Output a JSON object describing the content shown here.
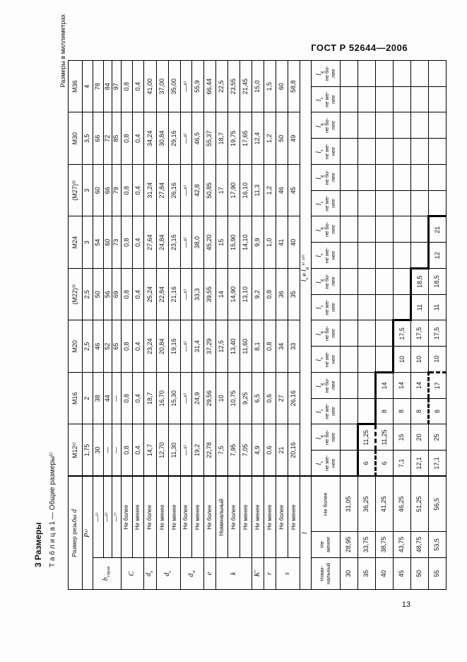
{
  "page": {
    "doc_code": "ГОСТ Р 52644—2006",
    "page_number": "13",
    "section_title": "3  Размеры",
    "table_caption": "Т а б л и ц а  1 — Общие размеры¹⁾",
    "units_note": "Размеры в миллиметрах"
  },
  "main_table": {
    "corner_label": "Размер резьбы",
    "corner_symbol": "d",
    "size_headers": [
      "М12²⁾",
      "М16",
      "М20",
      "(М22)³⁾",
      "М24",
      "(М27)³⁾",
      "М30",
      "М36"
    ],
    "groups": [
      {
        "sym": "P",
        "note": "⁴⁾",
        "span_label": true,
        "rows": [
          {
            "qual": "",
            "values": [
              "1,75",
              "2",
              "2,5",
              "2,5",
              "3",
              "3",
              "3,5",
              "4"
            ]
          }
        ]
      },
      {
        "sym": "b",
        "sub": "справ",
        "rows": [
          {
            "qual": "—⁵⁾",
            "values": [
              "30",
              "38",
              "46",
              "50",
              "54",
              "60",
              "66",
              "78"
            ]
          },
          {
            "qual": "—⁶⁾",
            "values": [
              "—",
              "44",
              "52",
              "56",
              "60",
              "66",
              "72",
              "84"
            ]
          },
          {
            "qual": "—⁷⁾",
            "values": [
              "—",
              "—",
              "65",
              "69",
              "73",
              "79",
              "85",
              "97"
            ]
          }
        ]
      },
      {
        "sym": "С",
        "rows": [
          {
            "qual": "Не более",
            "values": [
              "0,8",
              "0,8",
              "0,8",
              "0,8",
              "0,8",
              "0,8",
              "0,8",
              "0,8"
            ]
          },
          {
            "qual": "Не менее",
            "values": [
              "0,4",
              "0,4",
              "0,4",
              "0,4",
              "0,4",
              "0,4",
              "0,4",
              "0,4"
            ]
          }
        ]
      },
      {
        "sym": "d",
        "sub": "а",
        "rows": [
          {
            "qual": "Не более",
            "values": [
              "14,7",
              "18,7",
              "23,24",
              "25,24",
              "27,64",
              "31,24",
              "34,24",
              "41,00"
            ]
          }
        ]
      },
      {
        "sym": "d",
        "sub": "s",
        "rows": [
          {
            "qual": "Не менее",
            "values": [
              "12,70",
              "16,70",
              "20,84",
              "22,84",
              "24,84",
              "27,84",
              "30,84",
              "37,00"
            ]
          },
          {
            "qual": "Не менее",
            "values": [
              "11,30",
              "15,30",
              "19,16",
              "21,16",
              "23,16",
              "26,16",
              "29,16",
              "35,00"
            ]
          }
        ]
      },
      {
        "sym": "d",
        "sub": "w",
        "rows": [
          {
            "qual": "Не более",
            "values": [
              "—⁸⁾",
              "—⁸⁾",
              "—⁸⁾",
              "—⁸⁾",
              "—⁸⁾",
              "—⁸⁾",
              "—⁸⁾",
              "—⁸⁾"
            ]
          },
          {
            "qual": "Не менее",
            "values": [
              "19,2",
              "24,9",
              "31,4",
              "33,3",
              "38,0",
              "42,8",
              "46,5",
              "55,9"
            ]
          }
        ]
      },
      {
        "sym": "e",
        "rows": [
          {
            "qual": "Не более",
            "values": [
              "22,78",
              "29,56",
              "37,29",
              "39,55",
              "45,20",
              "50,85",
              "55,37",
              "66,44"
            ]
          }
        ]
      },
      {
        "sym": "k",
        "rows": [
          {
            "qual": "Номинальный",
            "values": [
              "7,5",
              "10",
              "12,5",
              "14",
              "15",
              "17",
              "18,7",
              "22,5"
            ]
          },
          {
            "qual": "Не более",
            "values": [
              "7,95",
              "10,75",
              "13,40",
              "14,90",
              "15,90",
              "17,90",
              "19,75",
              "23,55"
            ]
          },
          {
            "qual": "Не менее",
            "values": [
              "7,05",
              "9,25",
              "11,60",
              "13,10",
              "14,10",
              "16,10",
              "17,65",
              "21,45"
            ]
          }
        ]
      },
      {
        "sym": "K'",
        "rows": [
          {
            "qual": "Не менее",
            "values": [
              "4,9",
              "6,5",
              "8,1",
              "9,2",
              "9,9",
              "11,3",
              "12,4",
              "15,0"
            ]
          }
        ]
      },
      {
        "sym": "r",
        "rows": [
          {
            "qual": "Не менее",
            "values": [
              "0,6",
              "0,6",
              "0,8",
              "0,8",
              "1,0",
              "1,2",
              "1,2",
              "1,5"
            ]
          }
        ]
      },
      {
        "sym": "s",
        "rows": [
          {
            "qual": "Не более",
            "values": [
              "21",
              "27",
              "34",
              "36",
              "41",
              "46",
              "50",
              "60"
            ]
          },
          {
            "qual": "Не менее",
            "values": [
              "20,16",
              "26,16",
              "33",
              "35",
              "40",
              "45",
              "49",
              "58,8"
            ]
          }
        ]
      }
    ]
  },
  "length_table": {
    "l_symbol": "l",
    "lsg_note": "⁹⁾ ¹⁰⁾",
    "lsg_mid": "и",
    "ls_sub": "s",
    "lg_sub": "g",
    "col_nominal_lines": [
      "Номи-",
      "нальный"
    ],
    "col_min_lines": [
      "Не",
      "менее"
    ],
    "col_max": "Не более",
    "ls_head_lines": [
      "не ме-",
      "нее"
    ],
    "lg_head_lines": [
      "не бо-",
      "лее"
    ],
    "rows": [
      {
        "l": "30",
        "min": "28,95",
        "max": "31,05",
        "pairs": [
          [
            "",
            ""
          ],
          [
            "",
            ""
          ],
          [
            "",
            ""
          ],
          [
            "",
            ""
          ],
          [
            "",
            ""
          ],
          [
            "",
            ""
          ],
          [
            "",
            ""
          ],
          [
            "",
            ""
          ]
        ]
      },
      {
        "l": "35",
        "min": "33,75",
        "max": "36,25",
        "pairs": [
          [
            "6",
            "11,25"
          ],
          [
            "",
            ""
          ],
          [
            "",
            ""
          ],
          [
            "",
            ""
          ],
          [
            "",
            ""
          ],
          [
            "",
            ""
          ],
          [
            "",
            ""
          ],
          [
            "",
            ""
          ]
        ]
      },
      {
        "l": "40",
        "min": "38,75",
        "max": "41,25",
        "pairs": [
          [
            "6",
            "11,25"
          ],
          [
            "8",
            "14"
          ],
          [
            "",
            ""
          ],
          [
            "",
            ""
          ],
          [
            "",
            ""
          ],
          [
            "",
            ""
          ],
          [
            "",
            ""
          ],
          [
            "",
            ""
          ]
        ]
      },
      {
        "l": "45",
        "min": "43,75",
        "max": "46,25",
        "pairs": [
          [
            "7,1",
            "15"
          ],
          [
            "8",
            "14"
          ],
          [
            "10",
            "17,5"
          ],
          [
            "",
            ""
          ],
          [
            "",
            ""
          ],
          [
            "",
            ""
          ],
          [
            "",
            ""
          ],
          [
            "",
            ""
          ]
        ]
      },
      {
        "l": "50",
        "min": "48,75",
        "max": "51,25",
        "pairs": [
          [
            "12,1",
            "20"
          ],
          [
            "8",
            "14"
          ],
          [
            "10",
            "17,5"
          ],
          [
            "11",
            "18,5"
          ],
          [
            "",
            ""
          ],
          [
            "",
            ""
          ],
          [
            "",
            ""
          ],
          [
            "",
            ""
          ]
        ]
      },
      {
        "l": "55",
        "min": "53,5",
        "max": "56,5",
        "pairs": [
          [
            "17,1",
            "25"
          ],
          [
            "8",
            "17"
          ],
          [
            "10",
            "17,5"
          ],
          [
            "11",
            "18,5"
          ],
          [
            "12",
            "21"
          ],
          [
            "",
            ""
          ],
          [
            "",
            ""
          ],
          [
            "",
            ""
          ]
        ]
      }
    ],
    "staircase": {
      "solid_top": {
        "35": [
          0
        ],
        "40": [
          1
        ],
        "45": [
          2
        ],
        "50": [
          3
        ],
        "55": [
          4
        ]
      },
      "solid_left": {
        "35": [
          1
        ],
        "40": [
          2
        ],
        "45": [
          3
        ],
        "50": [
          4
        ],
        "55": [
          5
        ]
      },
      "dash_top": {
        "40": [
          0
        ],
        "55": [
          1
        ]
      },
      "dash_left": {
        "55": [
          2
        ]
      }
    }
  }
}
